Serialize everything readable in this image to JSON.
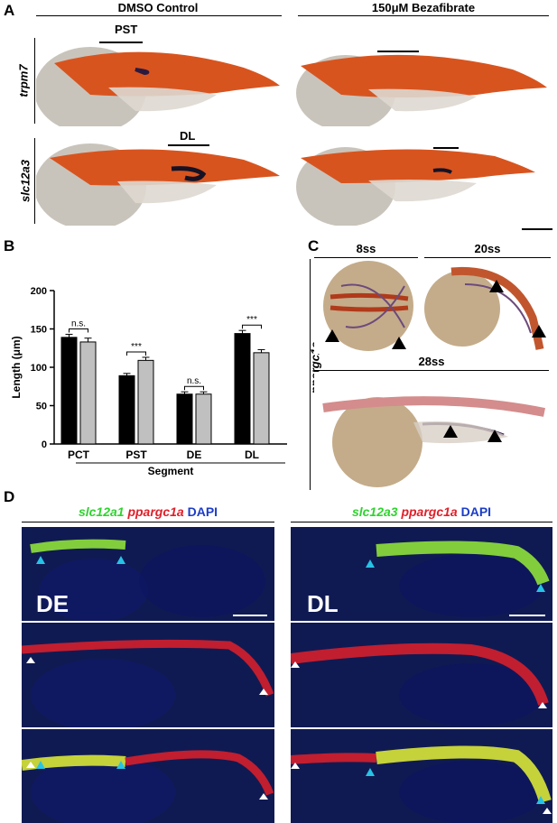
{
  "panel_a": {
    "label": "A",
    "col1": "DMSO Control",
    "col2": "150μM Bezafibrate",
    "gene1": "trpm7",
    "gene2": "slc12a3",
    "seg_top": "PST",
    "seg_bottom": "DL"
  },
  "panel_b": {
    "label": "B",
    "chart_data": {
      "type": "bar",
      "categories": [
        "PCT",
        "PST",
        "DE",
        "DL"
      ],
      "series": [
        {
          "values": [
            139,
            89,
            65,
            144
          ],
          "errors": [
            4,
            3,
            3,
            4
          ],
          "color": "#000000"
        },
        {
          "values": [
            133,
            109,
            65,
            119
          ],
          "errors": [
            5,
            4,
            3,
            4
          ],
          "color": "#c0c0c0"
        }
      ],
      "significance": [
        "n.s.",
        "***",
        "n.s.",
        "***"
      ],
      "xlabel": "Segment",
      "ylabel": "Length (μm)",
      "ylim": [
        0,
        200
      ],
      "yticks": [
        "0",
        "50",
        "100",
        "150",
        "200"
      ]
    }
  },
  "panel_c": {
    "label": "C",
    "stage1": "8ss",
    "stage2": "20ss",
    "stage3": "28ss",
    "gene": "ppargc1a"
  },
  "panel_d": {
    "label": "D",
    "left_title": {
      "g": "slc12a1",
      "r": "ppargc1a",
      "b": "DAPI"
    },
    "right_title": {
      "g": "slc12a3",
      "r": "ppargc1a",
      "b": "DAPI"
    },
    "left_tag": "DE",
    "right_tag": "DL"
  },
  "colors": {
    "embryo_orange": "#d8541f",
    "yolk": "#c8c3b8",
    "dapi": "#1c2b8c",
    "green": "#8fe13a",
    "red": "#e0202a",
    "arrow_cyan": "#27c3e6"
  }
}
